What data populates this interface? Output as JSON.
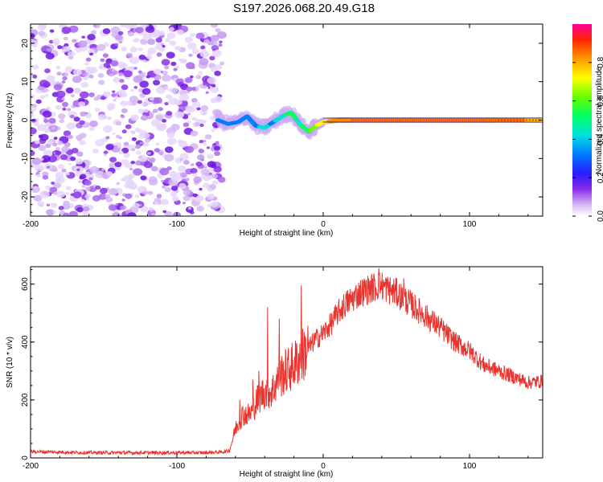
{
  "chart_data": [
    {
      "type": "heatmap",
      "title": "S197.2026.068.20.49.G18",
      "xlabel": "Height of straight line (km)",
      "ylabel": "Frequency (Hz)",
      "xlim": [
        -200,
        150
      ],
      "ylim": [
        -25,
        25
      ],
      "xticks": [
        -200,
        -100,
        0,
        100
      ],
      "yticks": [
        -20,
        -10,
        0,
        10,
        20
      ],
      "noise_region_x": [
        -200,
        -72
      ],
      "signal_track": {
        "x": [
          -72,
          -65,
          -58,
          -52,
          -46,
          -40,
          -34,
          -28,
          -22,
          -16,
          -10,
          -5,
          0,
          10,
          20,
          40,
          60,
          80,
          100,
          120,
          150
        ],
        "freq": [
          0,
          -1,
          -0.5,
          1,
          -1.5,
          -2,
          -0.5,
          1,
          2,
          -1,
          -3,
          -1.5,
          -0.5,
          0,
          0,
          0,
          0,
          0,
          0,
          0,
          0
        ],
        "amplitude": [
          0.25,
          0.35,
          0.3,
          0.4,
          0.45,
          0.5,
          0.45,
          0.55,
          0.6,
          0.55,
          0.65,
          0.75,
          0.85,
          0.9,
          0.95,
          0.95,
          0.92,
          0.95,
          0.95,
          0.9,
          0.85
        ]
      },
      "colorbar": {
        "label": "Normalized spectral amplitude",
        "ticks": [
          "0.0",
          "0.2",
          "0.4",
          "0.6",
          "0.8"
        ],
        "range": [
          0,
          1
        ]
      }
    },
    {
      "type": "line",
      "xlabel": "Height of straight line (km)",
      "ylabel": "SNR (10 * v/v)",
      "xlim": [
        -200,
        150
      ],
      "ylim": [
        0,
        660
      ],
      "xticks": [
        -200,
        -100,
        0,
        100
      ],
      "yticks": [
        0,
        200,
        400,
        600
      ],
      "series": [
        {
          "name": "SNR",
          "color": "#e8352f",
          "x": [
            -200,
            -180,
            -160,
            -140,
            -120,
            -100,
            -80,
            -70,
            -64,
            -60,
            -55,
            -50,
            -45,
            -40,
            -35,
            -30,
            -25,
            -20,
            -15,
            -10,
            -5,
            0,
            5,
            10,
            15,
            20,
            25,
            30,
            35,
            40,
            45,
            50,
            60,
            70,
            80,
            90,
            100,
            110,
            120,
            130,
            140,
            150
          ],
          "values": [
            22,
            20,
            18,
            18,
            18,
            18,
            18,
            20,
            25,
            100,
            150,
            150,
            200,
            230,
            230,
            280,
            300,
            320,
            350,
            380,
            410,
            430,
            460,
            500,
            530,
            550,
            570,
            580,
            590,
            595,
            580,
            570,
            530,
            490,
            450,
            400,
            370,
            320,
            300,
            280,
            260,
            265
          ]
        }
      ],
      "spikes": [
        {
          "x": -57,
          "y": 200
        },
        {
          "x": -48,
          "y": 270
        },
        {
          "x": -44,
          "y": 300
        },
        {
          "x": -38,
          "y": 520
        },
        {
          "x": -30,
          "y": 480
        },
        {
          "x": -15,
          "y": 595
        },
        {
          "x": 38,
          "y": 655
        },
        {
          "x": 55,
          "y": 620
        }
      ]
    }
  ]
}
